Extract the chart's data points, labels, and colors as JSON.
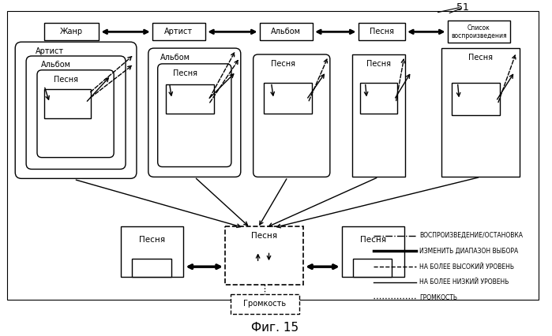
{
  "bg_color": "#ffffff",
  "title": "Фиг. 15",
  "label_51": "51",
  "legend": [
    {
      "label": "ВОСПРОИЗВЕДЕНИЕ/ОСТАНОВКА",
      "ls": "dashdot",
      "lw": 1.0
    },
    {
      "label": "ИЗМЕНИТЬ ДИАПАЗОН ВЫБОРА",
      "ls": "solid",
      "lw": 2.5
    },
    {
      "label": "НА БОЛЕЕ ВЫСОКИЙ УРОВЕНЬ",
      "ls": "dashed",
      "lw": 1.0
    },
    {
      "label": "НА БОЛЕЕ НИЗКИЙ УРОВЕНЬ",
      "ls": "solid",
      "lw": 1.0
    },
    {
      "label": "ГРОМКОСТЬ",
      "ls": "dotted",
      "lw": 1.0
    }
  ]
}
